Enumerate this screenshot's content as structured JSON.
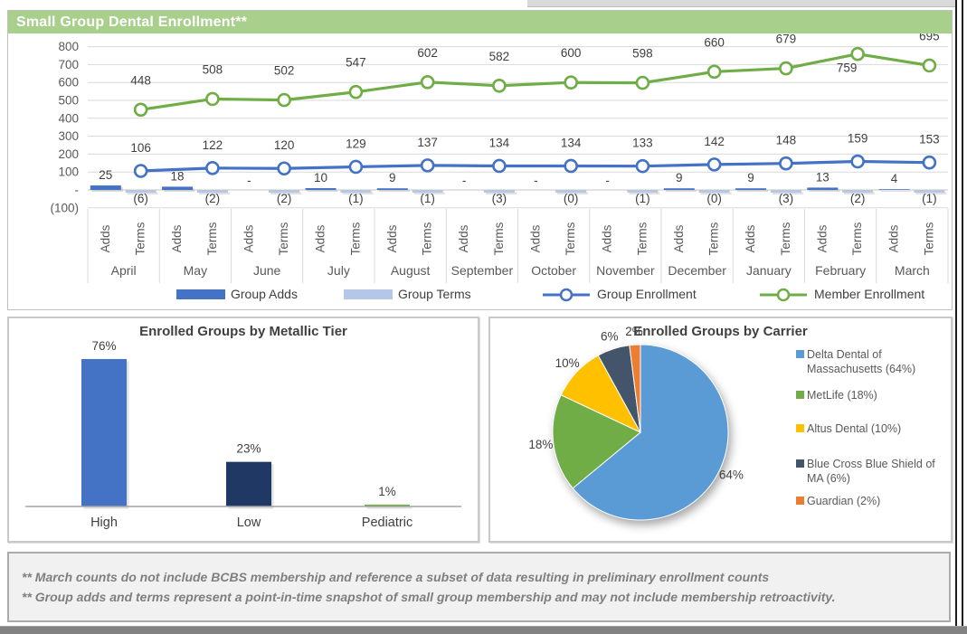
{
  "theme": {
    "header_bg": "#A9CF8D",
    "header_text": "#FFFFFF",
    "grid_color": "#D9D9D9",
    "axis_text_color": "#595959",
    "data_label_color": "#404040"
  },
  "chart_data": [
    {
      "id": "small_group_dental_enrollment",
      "type": "combo-bar-line",
      "title": "Small Group Dental Enrollment**",
      "categories": [
        "April",
        "May",
        "June",
        "July",
        "August",
        "September",
        "October",
        "November",
        "December",
        "January",
        "February",
        "March"
      ],
      "sub_categories": [
        "Adds",
        "Terms"
      ],
      "y_axis": {
        "ticks": [
          "800",
          "700",
          "600",
          "500",
          "400",
          "300",
          "200",
          "100",
          "-",
          "(100)"
        ],
        "tick_values": [
          800,
          700,
          600,
          500,
          400,
          300,
          200,
          100,
          0,
          -100
        ],
        "max": 800,
        "min": -100,
        "grid": true
      },
      "legend_position": "bottom",
      "series": [
        {
          "name": "Group Adds",
          "type": "bar",
          "color": "#4472C4",
          "values": [
            25,
            18,
            0,
            10,
            9,
            0,
            0,
            0,
            9,
            9,
            13,
            4
          ],
          "labels": [
            "25",
            "18",
            "-",
            "10",
            "9",
            "-",
            "-",
            "-",
            "9",
            "9",
            "13",
            "4"
          ]
        },
        {
          "name": "Group Terms",
          "type": "bar",
          "color": "#B4C7E7",
          "values": [
            -6,
            -2,
            -2,
            -1,
            -1,
            -3,
            0,
            -1,
            0,
            -3,
            -2,
            -1
          ],
          "labels": [
            "(6)",
            "(2)",
            "(2)",
            "(1)",
            "(1)",
            "(3)",
            "(0)",
            "(1)",
            "(0)",
            "(3)",
            "(2)",
            "(1)"
          ]
        },
        {
          "name": "Group Enrollment",
          "type": "line",
          "color": "#4472C4",
          "values": [
            106,
            122,
            120,
            129,
            137,
            134,
            134,
            133,
            142,
            148,
            159,
            153
          ]
        },
        {
          "name": "Member Enrollment",
          "type": "line",
          "color": "#70AD47",
          "values": [
            448,
            508,
            502,
            547,
            602,
            582,
            600,
            598,
            660,
            679,
            759,
            695
          ]
        }
      ]
    },
    {
      "id": "enrolled_groups_by_metallic_tier",
      "type": "bar",
      "title": "Enrolled Groups by Metallic Tier",
      "categories": [
        "High",
        "Low",
        "Pediatric"
      ],
      "values": [
        76,
        23,
        1
      ],
      "labels": [
        "76%",
        "23%",
        "1%"
      ],
      "colors": [
        "#4472C4",
        "#1F3864",
        "#70AD47"
      ],
      "ylim": [
        0,
        80
      ],
      "grid": false
    },
    {
      "id": "enrolled_groups_by_carrier",
      "type": "pie",
      "title": "Enrolled Groups by Carrier",
      "legend_position": "right",
      "slices": [
        {
          "label": "Delta Dental of Massachusetts (64%)",
          "pct_label": "64%",
          "value": 64,
          "color": "#5B9BD5"
        },
        {
          "label": "MetLife (18%)",
          "pct_label": "18%",
          "value": 18,
          "color": "#70AD47"
        },
        {
          "label": "Altus Dental (10%)",
          "pct_label": "10%",
          "value": 10,
          "color": "#FFC000"
        },
        {
          "label": "Blue Cross Blue Shield of MA (6%)",
          "pct_label": "6%",
          "value": 6,
          "color": "#44546A"
        },
        {
          "label": "Guardian (2%)",
          "pct_label": "2%",
          "value": 2,
          "color": "#ED7D31"
        }
      ]
    }
  ],
  "footnotes": [
    "** March counts do not include BCBS membership and reference a subset of data resulting in preliminary enrollment counts",
    "** Group adds and terms represent a point-in-time snapshot of small group membership and may not include membership retroactivity."
  ]
}
